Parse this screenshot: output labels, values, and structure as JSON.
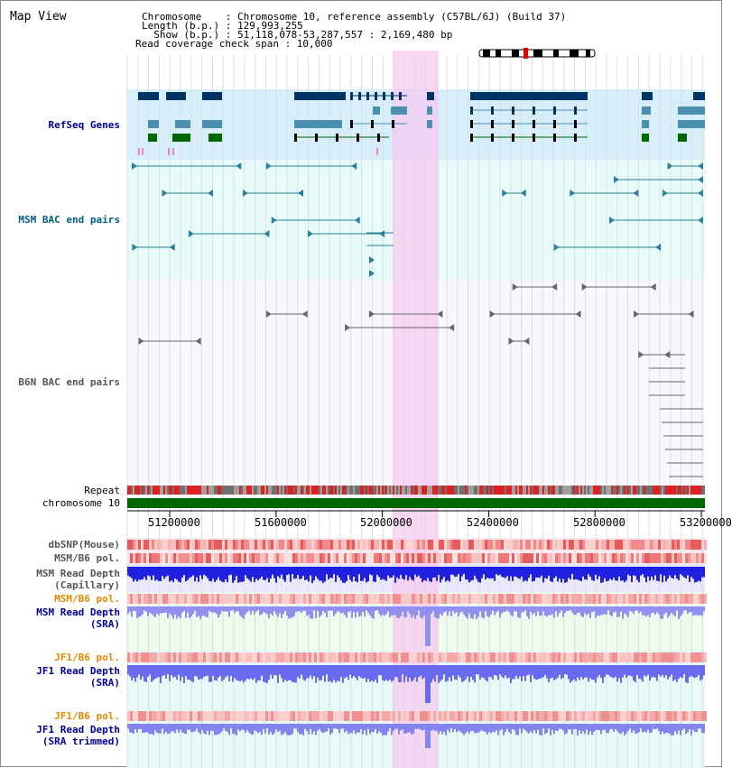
{
  "title": "Map View",
  "header": {
    "chromosome_line": "Chromosome    : Chromosome 10, reference assembly (C57BL/6J) (Build 37)",
    "length_line": "Length (b.p.) : 129,993,255",
    "show_line": "  Show (b.p.) : 51,118,078-53,287,557 : 2,169,480 bp",
    "coverage_line": "Read coverage check span : 10,000"
  },
  "tracks": {
    "refseq": "RefSeq Genes",
    "msm_bac": "MSM BAC end pairs",
    "b6n_bac": "B6N BAC end pairs",
    "repeat": "Repeat",
    "chromosome": "chromosome 10",
    "dbsnp": "dbSNP(Mouse)",
    "msm_b6_pol": "MSM/B6 pol.",
    "msm_depth_cap_1": "MSM Read Depth",
    "msm_depth_cap_2": "(Capillary)",
    "msm_b6_pol_2": "MSM/B6 pol.",
    "msm_depth_sra_1": "MSM Read Depth",
    "msm_depth_sra_2": "(SRA)",
    "jf1_b6_pol": "JF1/B6 pol.",
    "jf1_depth_sra_1": "JF1 Read Depth",
    "jf1_depth_sra_2": "(SRA)",
    "jf1_b6_pol_2": "JF1/B6 pol.",
    "jf1_depth_trim_1": "JF1 Read Depth",
    "jf1_depth_trim_2": "(SRA trimmed)"
  },
  "axis": {
    "ticks": [
      "51200000",
      "51600000",
      "52000000",
      "52400000",
      "52800000",
      "53200000"
    ]
  },
  "colors": {
    "refseq_label": "#000099",
    "msm_label": "#006080",
    "b6n_label": "#555555",
    "orange_label": "#e08a00",
    "blue_label": "#000099",
    "highlight": "#f6c8ef"
  }
}
